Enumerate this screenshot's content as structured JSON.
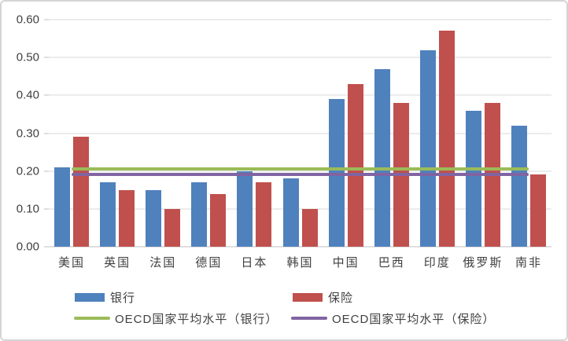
{
  "chart_data": {
    "type": "bar",
    "title": "",
    "xlabel": "",
    "ylabel": "",
    "categories": [
      "美国",
      "英国",
      "法国",
      "德国",
      "日本",
      "韩国",
      "中国",
      "巴西",
      "印度",
      "俄罗斯",
      "南非"
    ],
    "series": [
      {
        "name": "银行",
        "kind": "bar",
        "color": "#4F81BD",
        "values": [
          0.21,
          0.17,
          0.15,
          0.17,
          0.2,
          0.18,
          0.39,
          0.47,
          0.52,
          0.36,
          0.32
        ]
      },
      {
        "name": "保险",
        "kind": "bar",
        "color": "#C0504D",
        "values": [
          0.29,
          0.15,
          0.1,
          0.14,
          0.17,
          0.1,
          0.43,
          0.38,
          0.57,
          0.38,
          0.19
        ]
      },
      {
        "name": "OECD国家平均水平（银行）",
        "kind": "line",
        "color": "#9BBB59",
        "value": 0.205
      },
      {
        "name": "OECD国家平均水平（保险）",
        "kind": "line",
        "color": "#8064A2",
        "value": 0.19
      }
    ],
    "ylim": [
      0,
      0.6
    ],
    "ytick_step": 0.1,
    "ytick_labels": [
      "0.00",
      "0.10",
      "0.20",
      "0.30",
      "0.40",
      "0.50",
      "0.60"
    ],
    "grid": true,
    "legend_position": "bottom"
  },
  "colors": {
    "background": "#FFFFFF",
    "frame_border": "#D4D4D4",
    "gridline": "#D9D9D9",
    "axis_line": "#BFBFBF",
    "text": "#404040"
  }
}
